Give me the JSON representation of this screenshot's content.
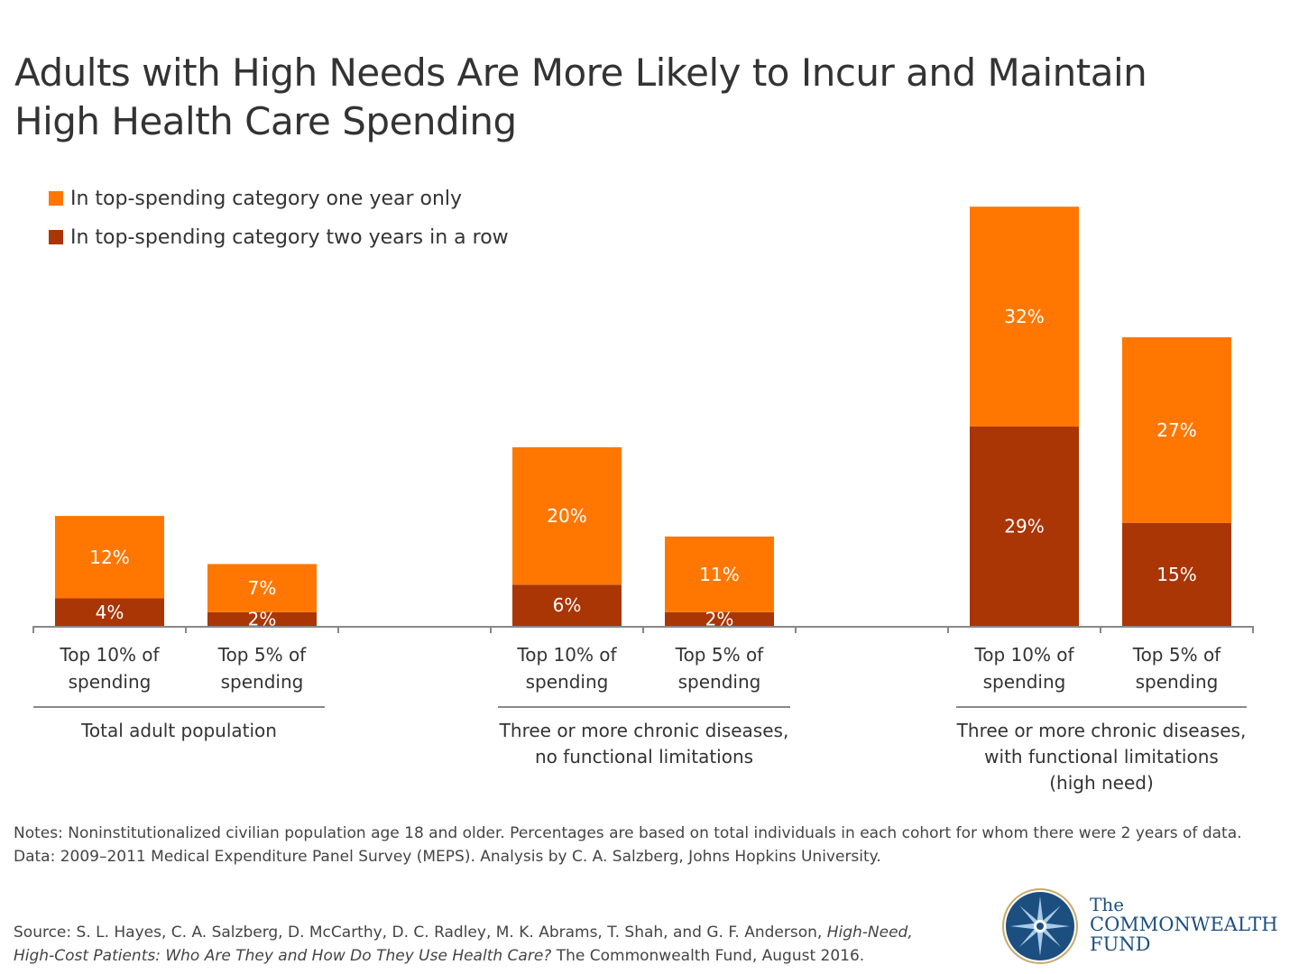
{
  "title": "Adults with High Needs Are More Likely to Incur and Maintain High Health Care Spending",
  "colors": {
    "one_year": "#FF7700",
    "two_years": "#AA3505",
    "axis": "#888888",
    "logo_blue": "#1c4f80"
  },
  "chart_data": {
    "type": "bar",
    "stacked": true,
    "title": "Adults with High Needs Are More Likely to Incur and Maintain High Health Care Spending",
    "legend_placement": "top-left",
    "grid": false,
    "ylim": [
      0,
      62
    ],
    "groups": [
      {
        "label": "Total adult population",
        "categories": [
          "Top 10% of spending",
          "Top 5% of spending"
        ]
      },
      {
        "label": "Three or more chronic diseases, no functional limitations",
        "categories": [
          "Top 10% of spending",
          "Top 5% of spending"
        ]
      },
      {
        "label": "Three or more chronic diseases, with functional limitations (high need)",
        "categories": [
          "Top 10% of spending",
          "Top 5% of spending"
        ]
      }
    ],
    "group_label_lines": [
      [
        "Total adult population"
      ],
      [
        "Three or more chronic diseases,",
        "no functional limitations"
      ],
      [
        "Three or more chronic diseases,",
        "with functional limitations",
        "(high need)"
      ]
    ],
    "category_label_lines": [
      "Top 10% of",
      "spending",
      "Top 5% of",
      "spending"
    ],
    "series": [
      {
        "name": "In top-spending category two years in a row",
        "values": [
          4,
          2,
          6,
          2,
          29,
          15
        ],
        "labels": [
          "4%",
          "2%",
          "6%",
          "2%",
          "29%",
          "15%"
        ]
      },
      {
        "name": "In top-spending category one year only",
        "values": [
          12,
          7,
          20,
          11,
          32,
          27
        ],
        "labels": [
          "12%",
          "7%",
          "20%",
          "11%",
          "32%",
          "27%"
        ]
      }
    ]
  },
  "legend": {
    "one_year": "In top-spending category one year only",
    "two_years": "In top-spending category two years in a row"
  },
  "notes": [
    "Notes: Noninstitutionalized civilian population age 18 and older. Percentages are based on total individuals in each cohort for whom there were 2 years of data.",
    "Data: 2009–2011 Medical Expenditure Panel Survey (MEPS). Analysis by C. A. Salzberg, Johns Hopkins University."
  ],
  "source": {
    "prefix": "Source: S. L. Hayes, C. A. Salzberg, D. McCarthy, D. C. Radley, M. K. Abrams, T. Shah, and G. F. Anderson, ",
    "title_line1": "High-Need,",
    "line2_italic": "High-Cost Patients: Who Are They and How Do They Use Health Care?",
    "line2_rest": " The Commonwealth Fund, August 2016."
  },
  "logo": {
    "line1": "The",
    "line2": "COMMONWEALTH",
    "line3": "FUND"
  }
}
